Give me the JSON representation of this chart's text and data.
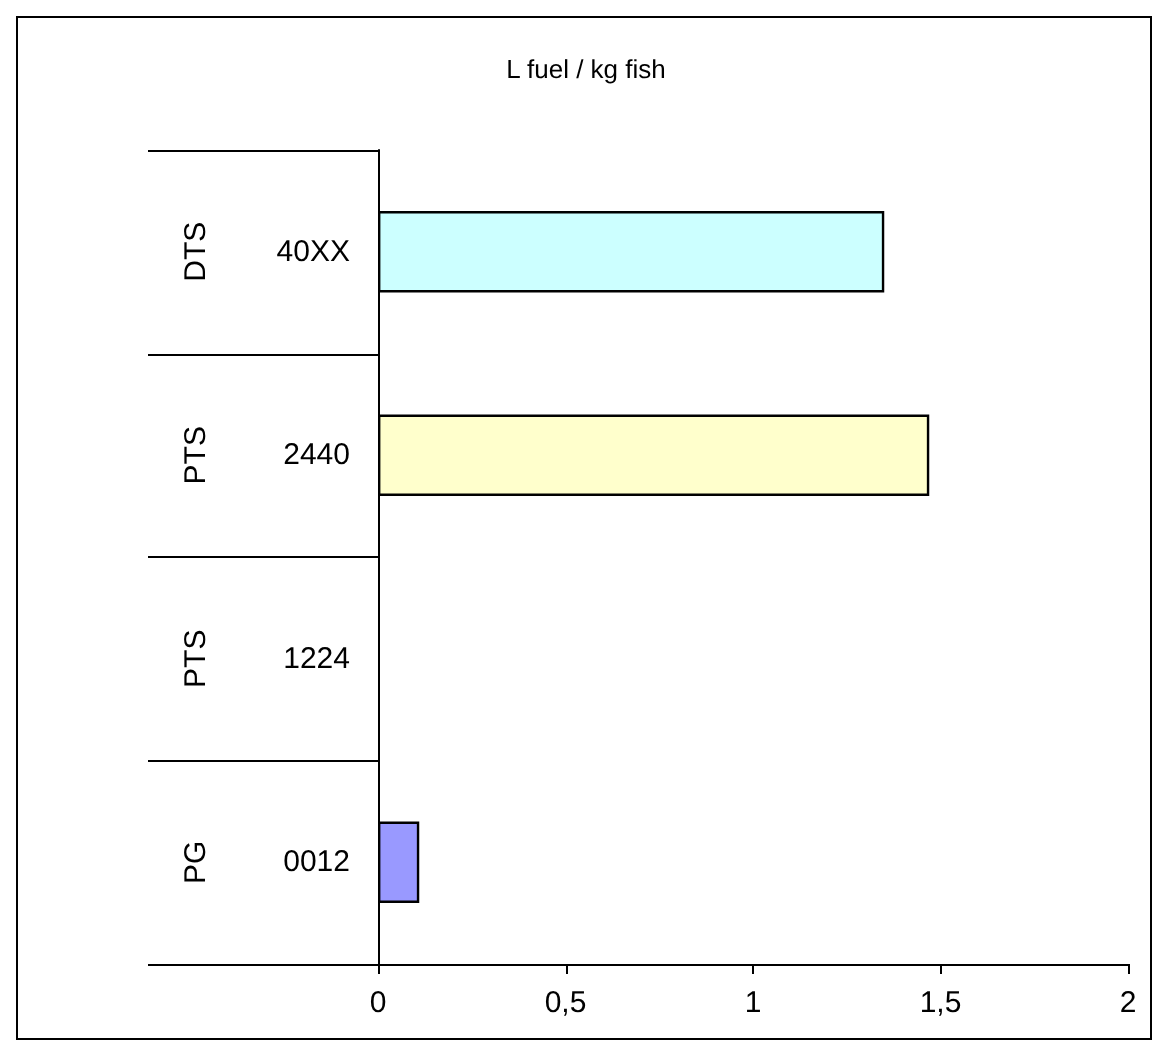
{
  "chart_data": {
    "type": "bar",
    "orientation": "horizontal",
    "title": "L fuel / kg fish",
    "categories": [
      "40XX",
      "2440",
      "1224",
      "0012"
    ],
    "annotations": [
      "DTS",
      "PTS",
      "PTS",
      "PG"
    ],
    "values": [
      1.35,
      1.47,
      null,
      0.11
    ],
    "colors": [
      "#ccffff",
      "#ffffcc",
      null,
      "#9999ff"
    ],
    "xlim": [
      0,
      2
    ],
    "xticks": [
      0,
      {
        "value": 0.5,
        "label": "0,5"
      },
      1,
      {
        "value": 1.5,
        "label": "1,5"
      },
      2
    ],
    "data_labels": false
  }
}
